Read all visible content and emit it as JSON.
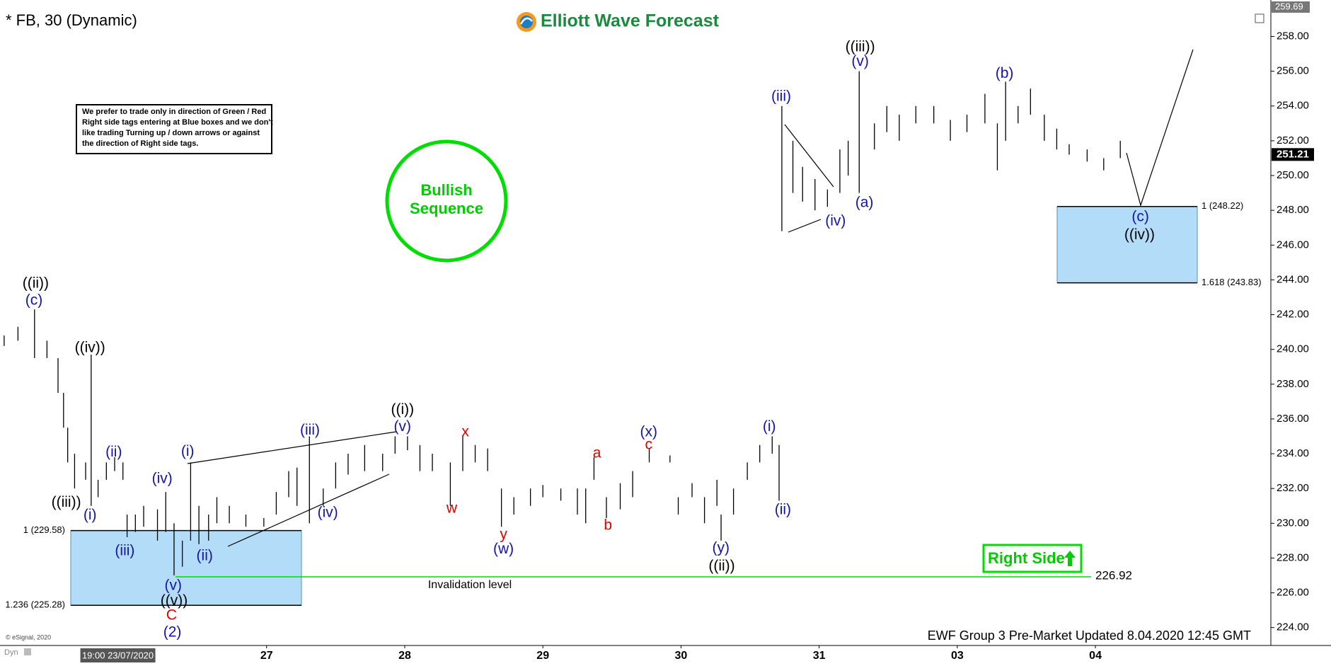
{
  "chart_data": {
    "type": "bar-range",
    "title": "* FB, 30 (Dynamic)",
    "logo": "Elliott Wave Forecast",
    "note": [
      "We prefer to trade only in direction of Green / Red",
      "Right side tags entering at Blue boxes and we don't",
      "like trading Turning up / down arrows or against",
      "the direction of Right side tags."
    ],
    "badge": [
      "Bullish",
      "Sequence"
    ],
    "right_side": "Right Side",
    "footer": "EWF Group 3 Pre-Market Updated 8.04.2020 12:45 GMT",
    "copyright": "© eSignal, 2020",
    "corner": "Dyn",
    "bar_color": "#000000",
    "x": [
      -0.9,
      -0.8,
      -0.68,
      -0.59,
      -0.51,
      -0.47,
      -0.44,
      -0.39,
      -0.31,
      -0.27,
      -0.22,
      -0.16,
      -0.1,
      -0.04,
      -0.01,
      0.05,
      0.11,
      0.21,
      0.27,
      0.33,
      0.39,
      0.45,
      0.51,
      0.58,
      0.64,
      0.73,
      0.85,
      0.98,
      1.07,
      1.16,
      1.22,
      1.31,
      1.41,
      1.5,
      1.59,
      1.71,
      1.84,
      1.93,
      2.02,
      2.11,
      2.2,
      2.33,
      2.42,
      2.51,
      2.6,
      2.7,
      2.79,
      2.91,
      3.0,
      3.13,
      3.25,
      3.31,
      3.37,
      3.46,
      3.56,
      3.65,
      3.77,
      3.92,
      3.98,
      4.08,
      4.17,
      4.26,
      4.29,
      4.38,
      4.48,
      4.57,
      4.66,
      4.71,
      4.73,
      4.81,
      4.88,
      4.97,
      5.06,
      5.15,
      5.21,
      5.29,
      5.4,
      5.49,
      5.58,
      5.7,
      5.83,
      5.95,
      6.07,
      6.2,
      6.29,
      6.35,
      6.44,
      6.53,
      6.63,
      6.72,
      6.81,
      6.94,
      7.06,
      7.18
    ],
    "high": [
      240.8,
      241.3,
      242.3,
      240.5,
      239.5,
      237.5,
      235.5,
      234,
      233.5,
      239.7,
      232.5,
      233.5,
      233.8,
      233.5,
      230.5,
      230.5,
      231,
      230.8,
      231.8,
      230,
      229,
      233.5,
      231,
      230.5,
      231.5,
      231,
      230.5,
      230.3,
      231.8,
      233,
      233.2,
      235,
      232,
      233.5,
      234,
      234.5,
      234,
      235,
      235,
      234.5,
      234,
      233.5,
      235,
      234.5,
      234.3,
      232,
      231.5,
      232,
      232.2,
      232,
      232,
      232,
      233.8,
      231.5,
      232.3,
      233,
      234.3,
      233.9,
      231.5,
      232.3,
      231.5,
      232.5,
      230.5,
      232,
      233.5,
      234.5,
      235,
      234.5,
      254,
      252,
      250.5,
      249.8,
      249.2,
      251.5,
      252,
      256,
      253,
      254,
      253.5,
      254,
      254,
      253.2,
      253.5,
      254.7,
      253,
      255.4,
      254,
      255,
      253.5,
      252.7,
      251.8,
      251.5,
      251,
      252
    ],
    "low": [
      240.2,
      240.5,
      239.5,
      239.5,
      237.5,
      235.5,
      233.5,
      232,
      232.5,
      231,
      231.5,
      232.5,
      233,
      232.5,
      229.2,
      229.5,
      229.8,
      229,
      229.5,
      227,
      227.5,
      229,
      228.8,
      229,
      230,
      230,
      229.8,
      229.8,
      230.5,
      231.5,
      231,
      230,
      231,
      232,
      232.8,
      233,
      233,
      234,
      234.2,
      233,
      233,
      231,
      233,
      233.5,
      233,
      229.8,
      230.5,
      231,
      231.5,
      231.3,
      230.5,
      230,
      232.5,
      230.3,
      230.8,
      231.5,
      233.5,
      233.5,
      230.5,
      231.5,
      230,
      231,
      229,
      230.5,
      232.5,
      233.5,
      234,
      231.3,
      246.8,
      249,
      248.5,
      248,
      248.2,
      249,
      250,
      249,
      251.5,
      252.5,
      252,
      253,
      253,
      252,
      252.5,
      253,
      250.3,
      252,
      253,
      253.5,
      252,
      251.5,
      251.2,
      250.8,
      250.3,
      251
    ],
    "xlim": [
      -0.93,
      8.27
    ],
    "ylim": [
      222.97,
      259.69
    ],
    "xticks": [
      {
        "value": 0,
        "label": "19:00 23/07/2020"
      },
      {
        "value": 1,
        "label": "27"
      },
      {
        "value": 2,
        "label": "28"
      },
      {
        "value": 3,
        "label": "29"
      },
      {
        "value": 4,
        "label": "30"
      },
      {
        "value": 5,
        "label": "31"
      },
      {
        "value": 6,
        "label": "03"
      },
      {
        "value": 7,
        "label": "04"
      }
    ],
    "yticks": [
      {
        "value": 224,
        "label": "224.00"
      },
      {
        "value": 226,
        "label": "226.00"
      },
      {
        "value": 228,
        "label": "228.00"
      },
      {
        "value": 230,
        "label": "230.00"
      },
      {
        "value": 232,
        "label": "232.00"
      },
      {
        "value": 234,
        "label": "234.00"
      },
      {
        "value": 236,
        "label": "236.00"
      },
      {
        "value": 238,
        "label": "238.00"
      },
      {
        "value": 240,
        "label": "240.00"
      },
      {
        "value": 242,
        "label": "242.00"
      },
      {
        "value": 244,
        "label": "244.00"
      },
      {
        "value": 246,
        "label": "246.00"
      },
      {
        "value": 248,
        "label": "248.00"
      },
      {
        "value": 250,
        "label": "250.00"
      },
      {
        "value": 252,
        "label": "252.00"
      },
      {
        "value": 254,
        "label": "254.00"
      },
      {
        "value": 256,
        "label": "256.00"
      },
      {
        "value": 258,
        "label": "258.00"
      }
    ],
    "axis_top": {
      "value": 259.69,
      "label": "259.69"
    },
    "last_price": {
      "value": 251.21,
      "label": "251.21"
    },
    "invalidation": {
      "value": 226.92,
      "label": "226.92",
      "text": "Invalidation level",
      "color": "#00dd00"
    },
    "zones": [
      {
        "top": 229.58,
        "bottom": 225.28,
        "top_label": "1 (229.58)",
        "bottom_label": "1.236 (225.28)",
        "color": "#b3dcf8"
      },
      {
        "top": 248.22,
        "bottom": 243.83,
        "top_label": "1 (248.22)",
        "bottom_label": "1.618 (243.83)",
        "color": "#b3dcf8"
      }
    ],
    "wave_labels": [
      {
        "text": "((ii))",
        "color": "#000000"
      },
      {
        "text": "(c)",
        "color": "#1414a8"
      },
      {
        "text": "((iv))",
        "color": "#000000"
      },
      {
        "text": "((iii))",
        "color": "#000000"
      },
      {
        "text": "(i)",
        "color": "#1414a8"
      },
      {
        "text": "(ii)",
        "color": "#1414a8"
      },
      {
        "text": "(iii)",
        "color": "#1414a8"
      },
      {
        "text": "(iv)",
        "color": "#1414a8"
      },
      {
        "text": "(i)",
        "color": "#1414a8"
      },
      {
        "text": "(ii)",
        "color": "#1414a8"
      },
      {
        "text": "(v)",
        "color": "#1414a8"
      },
      {
        "text": "((v))",
        "color": "#000000"
      },
      {
        "text": "C",
        "color": "#e00000"
      },
      {
        "text": "(2)",
        "color": "#1414a8"
      },
      {
        "text": "(iii)",
        "color": "#1414a8"
      },
      {
        "text": "(iv)",
        "color": "#1414a8"
      },
      {
        "text": "((i))",
        "color": "#000000"
      },
      {
        "text": "(v)",
        "color": "#1414a8"
      },
      {
        "text": "x",
        "color": "#e00000"
      },
      {
        "text": "w",
        "color": "#e00000"
      },
      {
        "text": "y",
        "color": "#e00000"
      },
      {
        "text": "(w)",
        "color": "#1414a8"
      },
      {
        "text": "a",
        "color": "#e00000"
      },
      {
        "text": "b",
        "color": "#e00000"
      },
      {
        "text": "(x)",
        "color": "#1414a8"
      },
      {
        "text": "c",
        "color": "#e00000"
      },
      {
        "text": "(i)",
        "color": "#1414a8"
      },
      {
        "text": "(ii)",
        "color": "#1414a8"
      },
      {
        "text": "(y)",
        "color": "#1414a8"
      },
      {
        "text": "((ii))",
        "color": "#000000"
      },
      {
        "text": "(iii)",
        "color": "#1414a8"
      },
      {
        "text": "(iv)",
        "color": "#1414a8"
      },
      {
        "text": "((iii))",
        "color": "#000000"
      },
      {
        "text": "(v)",
        "color": "#1414a8"
      },
      {
        "text": "(a)",
        "color": "#1414a8"
      },
      {
        "text": "(b)",
        "color": "#1414a8"
      },
      {
        "text": "(c)",
        "color": "#1414a8"
      },
      {
        "text": "((iv))",
        "color": "#000000"
      }
    ]
  }
}
